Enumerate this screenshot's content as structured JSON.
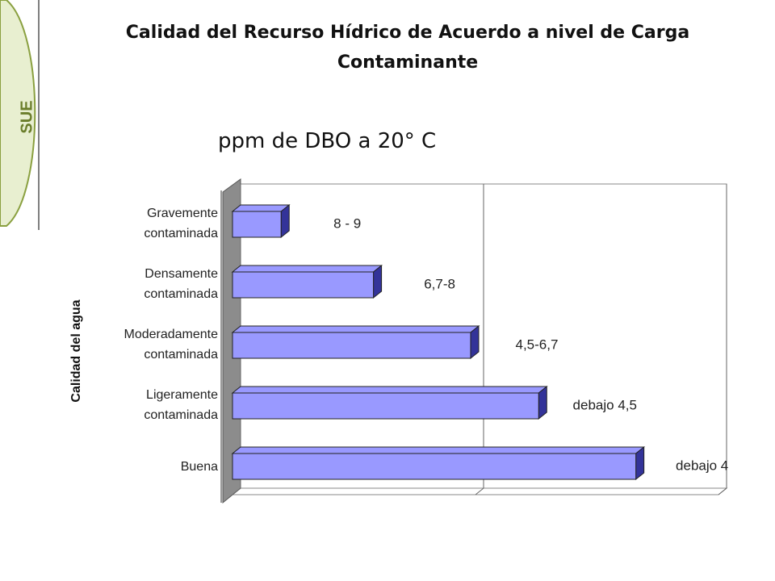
{
  "logo": "SUE",
  "chart_data": {
    "type": "bar3d-horizontal",
    "title": "Calidad del Recurso Hídrico de Acuerdo a nivel de Carga Contaminante",
    "subtitle": "ppm de DBO a 20° C",
    "y_axis_label": "Calidad del agua",
    "categories": [
      "Gravemente contaminada",
      "Densamente contaminada",
      "Moderadamente contaminada",
      "Ligeramente contaminada",
      "Buena"
    ],
    "values": [
      10,
      29,
      49,
      63,
      83
    ],
    "annotations": [
      "8 - 9",
      "6,7-8",
      "4,5-6,7",
      "debajo 4,5",
      "debajo 4"
    ],
    "color": "#9999ff",
    "xlim": [
      0,
      100
    ],
    "xticks": [
      0,
      50,
      100
    ],
    "grid": true
  }
}
